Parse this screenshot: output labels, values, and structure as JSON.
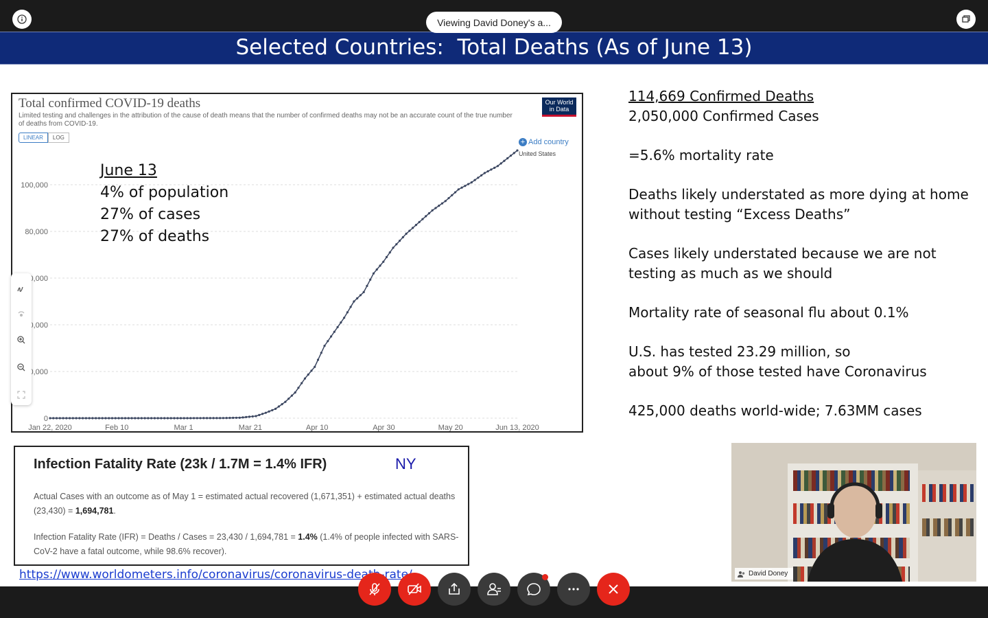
{
  "window": {
    "viewing_label": "Viewing David Doney's a..."
  },
  "slide": {
    "title": "Selected Countries:  Total Deaths (As of June 13)",
    "chart_panel": {
      "title": "Total confirmed COVID-19 deaths",
      "subtitle": "Limited testing and challenges in the attribution of the cause of death means that the number of confirmed deaths may not be an accurate count of the true number of deaths from COVID-19.",
      "scale_linear": "LINEAR",
      "scale_log": "LOG",
      "logo_text": "Our World in Data",
      "add_country": "Add country",
      "series_label": "United States",
      "note": {
        "heading": "June 13",
        "line1": "4% of population",
        "line2": "27% of cases",
        "line3": "27% of deaths"
      }
    },
    "right_text": {
      "deaths": "114,669 Confirmed Deaths",
      "cases": "2,050,000 Confirmed Cases",
      "mortality": "=5.6% mortality rate",
      "understated_deaths": "Deaths likely understated as more dying at home without testing “Excess Deaths”",
      "understated_cases": "Cases likely understated because we are not testing as much as we should",
      "flu": "Mortality rate of seasonal flu about 0.1%",
      "tested_line1": "U.S. has tested 23.29 million, so",
      "tested_line2": "about 9% of those tested have Coronavirus",
      "world": "425,000 deaths world-wide; 7.63MM cases"
    },
    "ifr_panel": {
      "title": "Infection Fatality Rate (23k / 1.7M = 1.4% IFR)",
      "region": "NY",
      "para1_text": "Actual Cases with an outcome as of May 1 = estimated actual recovered (1,671,351) + estimated actual deaths (23,430) = ",
      "para1_bold": "1,694,781",
      "para1_end": ".",
      "para2_text": "Infection Fatality Rate (IFR) = Deaths / Cases = 23,430 / 1,694,781 = ",
      "para2_bold": "1.4%",
      "para2_end": " (1.4% of people infected with SARS-CoV-2 have a fatal outcome, while 98.6% recover)."
    },
    "link_text": "https://www.worldometers.info/coronavirus/coronavirus-death-rate/"
  },
  "video": {
    "participant_name": "David Doney"
  },
  "controls": [
    {
      "name": "mute-button",
      "icon": "mic-off-icon"
    },
    {
      "name": "video-button",
      "icon": "camera-off-icon"
    },
    {
      "name": "share-button",
      "icon": "share-icon"
    },
    {
      "name": "participants-button",
      "icon": "participants-icon"
    },
    {
      "name": "chat-button",
      "icon": "chat-icon"
    },
    {
      "name": "more-button",
      "icon": "more-icon"
    },
    {
      "name": "leave-button",
      "icon": "close-icon"
    }
  ],
  "colors": {
    "title_bar": "#0f2a78",
    "accent_red": "#e5261b",
    "line": "#3b4660",
    "link": "#1a3ccf"
  },
  "chart_data": {
    "type": "line",
    "title": "Total confirmed COVID-19 deaths",
    "xlabel": "",
    "ylabel": "",
    "x_tick_labels": [
      "Jan 22, 2020",
      "Feb 10",
      "Mar 1",
      "Mar 21",
      "Apr 10",
      "Apr 30",
      "May 20",
      "Jun 13, 2020"
    ],
    "y_tick_labels": [
      "0",
      "20,000",
      "40,000",
      "60,000",
      "80,000",
      "100,000"
    ],
    "ylim": [
      0,
      110000
    ],
    "grid": true,
    "series": [
      {
        "name": "United States",
        "x": [
          "2020-01-22",
          "2020-02-29",
          "2020-03-10",
          "2020-03-15",
          "2020-03-20",
          "2020-03-25",
          "2020-03-28",
          "2020-03-31",
          "2020-04-03",
          "2020-04-06",
          "2020-04-09",
          "2020-04-12",
          "2020-04-15",
          "2020-04-18",
          "2020-04-21",
          "2020-04-24",
          "2020-04-27",
          "2020-04-30",
          "2020-05-03",
          "2020-05-06",
          "2020-05-10",
          "2020-05-14",
          "2020-05-18",
          "2020-05-22",
          "2020-05-26",
          "2020-05-30",
          "2020-06-03",
          "2020-06-07",
          "2020-06-13"
        ],
        "y": [
          0,
          1,
          30,
          60,
          200,
          900,
          2300,
          4000,
          7000,
          11000,
          17000,
          22000,
          31000,
          37000,
          43000,
          50000,
          54000,
          62000,
          67000,
          73000,
          79000,
          84000,
          89000,
          93000,
          98000,
          101000,
          105000,
          108000,
          114669
        ]
      }
    ]
  }
}
